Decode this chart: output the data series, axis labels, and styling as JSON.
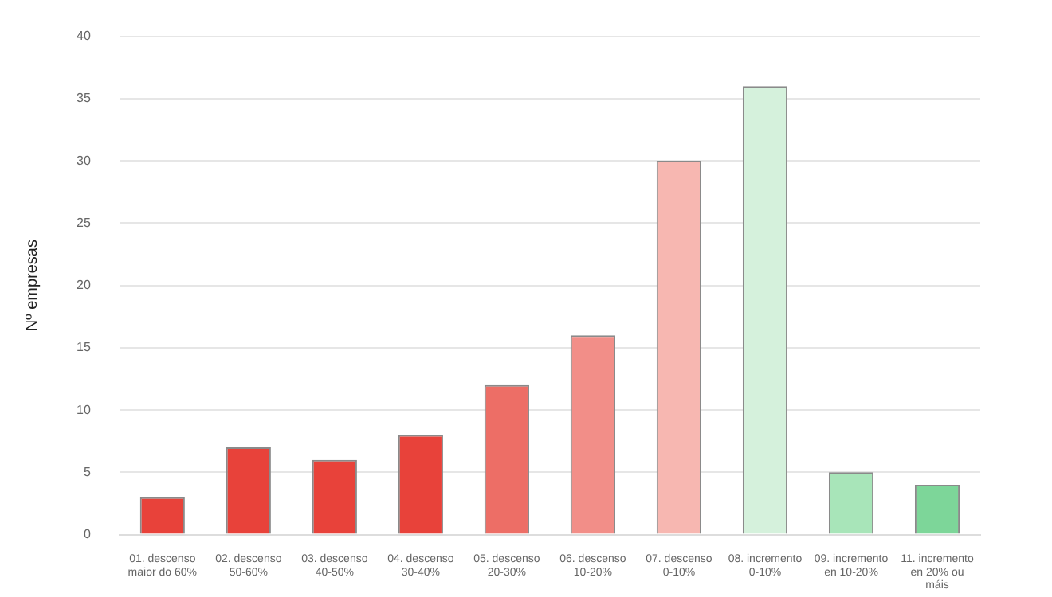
{
  "chart_data": {
    "type": "bar",
    "ylabel": "Nº empresas",
    "categories": [
      "01. descenso maior do 60%",
      "02. descenso 50-60%",
      "03. descenso 40-50%",
      "04. descenso 30-40%",
      "05. descenso 20-30%",
      "06. descenso 10-20%",
      "07. descenso 0-10%",
      "08. incremento 0-10%",
      "09. incremento en 10-20%",
      "11. incremento en 20% ou máis"
    ],
    "values": [
      3,
      7,
      6,
      8,
      12,
      16,
      30,
      36,
      5,
      4
    ],
    "colors": [
      "#e8423a",
      "#e8423a",
      "#e8423a",
      "#e8423a",
      "#ed6e66",
      "#f28e88",
      "#f7b7b1",
      "#d5f1dc",
      "#a8e5b9",
      "#7dd699"
    ],
    "ylim": [
      0,
      40
    ],
    "yticks": [
      0,
      5,
      10,
      15,
      20,
      25,
      30,
      35,
      40
    ],
    "grid": "y"
  }
}
